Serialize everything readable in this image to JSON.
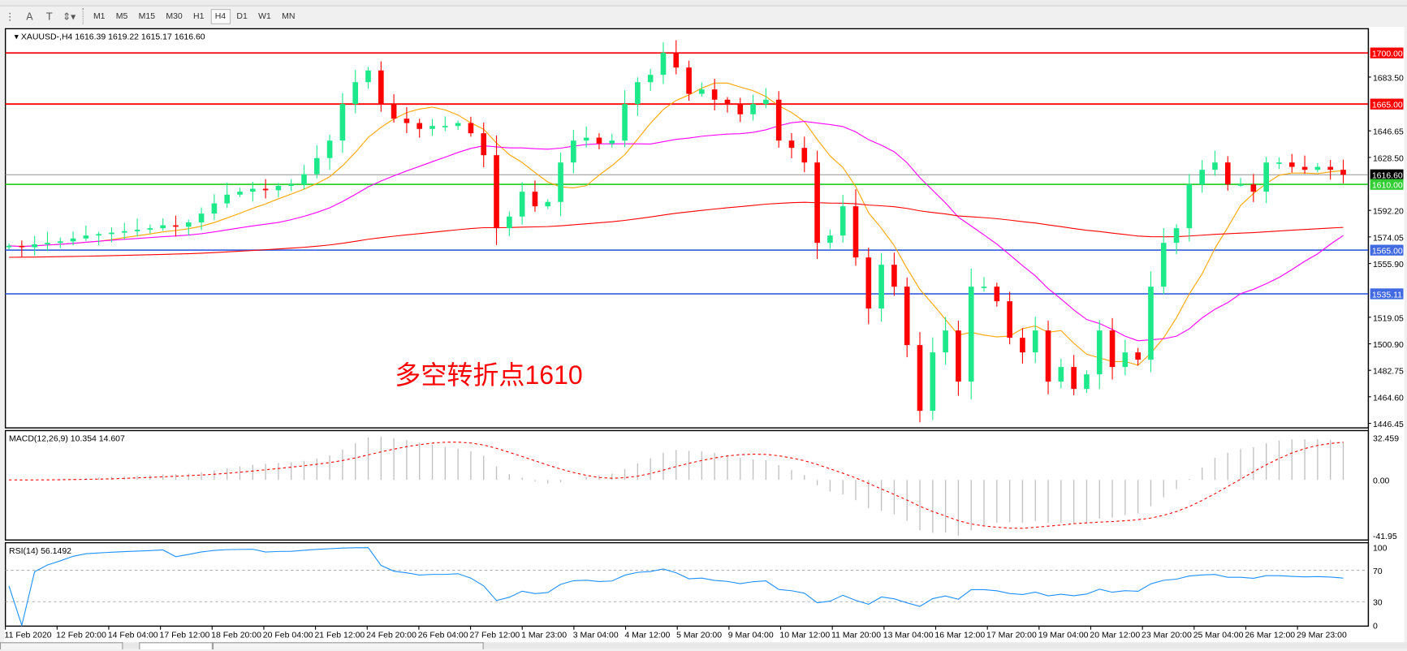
{
  "toolbar": {
    "timeframes": [
      "M1",
      "M5",
      "M15",
      "M30",
      "H1",
      "H4",
      "D1",
      "W1",
      "MN"
    ],
    "active_timeframe": "H4"
  },
  "header": {
    "symbol": "XAUUSD-,H4",
    "ohlc": "1616.39 1619.22 1615.17 1616.60"
  },
  "annotation": {
    "text": "多空转折点1610",
    "color": "#ff0000"
  },
  "colors": {
    "bull": "#1de98b",
    "bear": "#ff0000",
    "ma_fast": "#ffa500",
    "ma_mid": "#ff00ff",
    "ma_slow": "#ff0000",
    "resistance": "#ff0000",
    "pivot": "#32cd32",
    "support": "#4169e1",
    "current": "#a0a0a0",
    "macd_hist": "#c0c0c0",
    "macd_signal": "#ff0000",
    "rsi": "#1e90ff"
  },
  "chart_data": [
    {
      "type": "candlestick",
      "symbol": "XAUUSD",
      "timeframe": "H4",
      "ylim": [
        1446.45,
        1710
      ],
      "price_ticks": [
        "1683.50",
        "1646.65",
        "1628.50",
        "1592.20",
        "1574.05",
        "1555.90",
        "1519.05",
        "1500.90",
        "1482.75",
        "1464.60",
        "1446.45"
      ],
      "closes": [
        1568,
        1567,
        1569,
        1570,
        1571,
        1573,
        1575,
        1576,
        1577,
        1578,
        1579,
        1580,
        1582,
        1581,
        1584,
        1590,
        1597,
        1603,
        1605,
        1607,
        1606,
        1609,
        1610,
        1617,
        1628,
        1640,
        1665,
        1680,
        1688,
        1665,
        1655,
        1652,
        1648,
        1650,
        1650,
        1652,
        1645,
        1630,
        1580,
        1588,
        1605,
        1595,
        1598,
        1625,
        1640,
        1642,
        1638,
        1640,
        1665,
        1680,
        1685,
        1700,
        1690,
        1672,
        1675,
        1668,
        1665,
        1658,
        1665,
        1668,
        1640,
        1635,
        1625,
        1570,
        1575,
        1595,
        1560,
        1525,
        1555,
        1540,
        1500,
        1455,
        1495,
        1510,
        1475,
        1540,
        1540,
        1530,
        1505,
        1495,
        1510,
        1475,
        1485,
        1470,
        1480,
        1510,
        1485,
        1495,
        1490,
        1540,
        1570,
        1580,
        1610,
        1620,
        1625,
        1610,
        1610,
        1605,
        1625,
        1625,
        1622,
        1620,
        1622,
        1620,
        1616.6
      ],
      "horizontal_lines": [
        {
          "value": 1700.0,
          "label": "1700.00",
          "role": "resistance"
        },
        {
          "value": 1665.0,
          "label": "1665.00",
          "role": "resistance"
        },
        {
          "value": 1616.6,
          "label": "1616.60",
          "role": "current"
        },
        {
          "value": 1610.0,
          "label": "1610.00",
          "role": "pivot"
        },
        {
          "value": 1565.0,
          "label": "1565.00",
          "role": "support"
        },
        {
          "value": 1535.11,
          "label": "1535.11",
          "role": "support"
        }
      ],
      "x_tick_labels": [
        "11 Feb 2020",
        "12 Feb 20:00",
        "14 Feb 04:00",
        "17 Feb 12:00",
        "18 Feb 20:00",
        "20 Feb 04:00",
        "21 Feb 12:00",
        "24 Feb 20:00",
        "26 Feb 04:00",
        "27 Feb 12:00",
        "1 Mar 23:00",
        "3 Mar 04:00",
        "4 Mar 12:00",
        "5 Mar 20:00",
        "9 Mar 04:00",
        "10 Mar 12:00",
        "11 Mar 20:00",
        "13 Mar 04:00",
        "16 Mar 12:00",
        "17 Mar 20:00",
        "19 Mar 04:00",
        "20 Mar 12:00",
        "23 Mar 20:00",
        "25 Mar 04:00",
        "26 Mar 12:00",
        "29 Mar 23:00"
      ],
      "grid": false
    },
    {
      "type": "bar",
      "indicator": "MACD",
      "label": "MACD(12,26,9) 10.354 14.607",
      "ylim": [
        -41.95,
        32.459
      ],
      "ticks": [
        "32.459",
        "0.00",
        "-41.95"
      ]
    },
    {
      "type": "line",
      "indicator": "RSI",
      "label": "RSI(14) 56.1492",
      "ylim": [
        0,
        100
      ],
      "levels": [
        70,
        30
      ],
      "ticks": [
        "100",
        "70",
        "30",
        "0"
      ]
    }
  ]
}
